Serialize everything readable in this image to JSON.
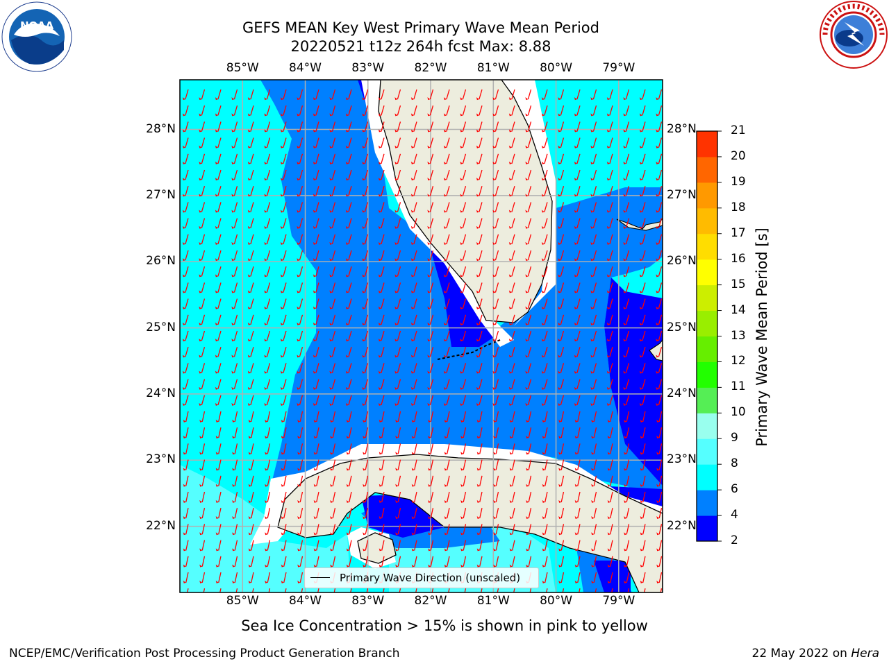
{
  "title_line1": "GEFS MEAN Key West Primary Wave Mean Period",
  "title_line2": "20220521 t12z 264h fcst   Max: 8.88",
  "legend_label": "Primary Wave Direction (unscaled)",
  "colorbar": {
    "label": "Primary Wave Mean Period [s]",
    "ticks": [
      2,
      4,
      6,
      8,
      9,
      10,
      11,
      12,
      13,
      14,
      15,
      16,
      17,
      18,
      19,
      20,
      21
    ],
    "colors": [
      "#0000ff",
      "#0080ff",
      "#00ffff",
      "#55ffff",
      "#99ffee",
      "#55ee55",
      "#22ff00",
      "#66ee00",
      "#99ee00",
      "#ccee00",
      "#ffff00",
      "#ffdd00",
      "#ffbb00",
      "#ff9900",
      "#ff6600",
      "#ff3300"
    ]
  },
  "note": "Sea Ice Concentration > 15% is shown in pink to yellow",
  "footer": {
    "left": "NCEP/EMC/Verification Post Processing Product Generation Branch",
    "right_date": "22 May 2022 on",
    "right_host": "Hera"
  },
  "chart_data": {
    "type": "heatmap",
    "title": "GEFS MEAN Key West Primary Wave Mean Period",
    "subtitle": "20220521 t12z 264h fcst   Max: 8.88",
    "x_ticks": [
      "85°W",
      "84°W",
      "83°W",
      "82°W",
      "81°W",
      "80°W",
      "79°W"
    ],
    "x_values": [
      -85,
      -84,
      -83,
      -82,
      -81,
      -80,
      -79
    ],
    "y_ticks": [
      "28°N",
      "27°N",
      "26°N",
      "25°N",
      "24°N",
      "23°N",
      "22°N"
    ],
    "y_values": [
      28,
      27,
      26,
      25,
      24,
      23,
      22
    ],
    "xlim": [
      -86.0,
      -78.3
    ],
    "ylim": [
      21.0,
      28.75
    ],
    "grid": true,
    "max_value": 8.88,
    "colorbar_label": "Primary Wave Mean Period [s]",
    "colorbar_range": [
      2,
      21
    ],
    "vector_field": "Primary Wave Direction (unscaled)",
    "vector_color": "#ff0000"
  }
}
